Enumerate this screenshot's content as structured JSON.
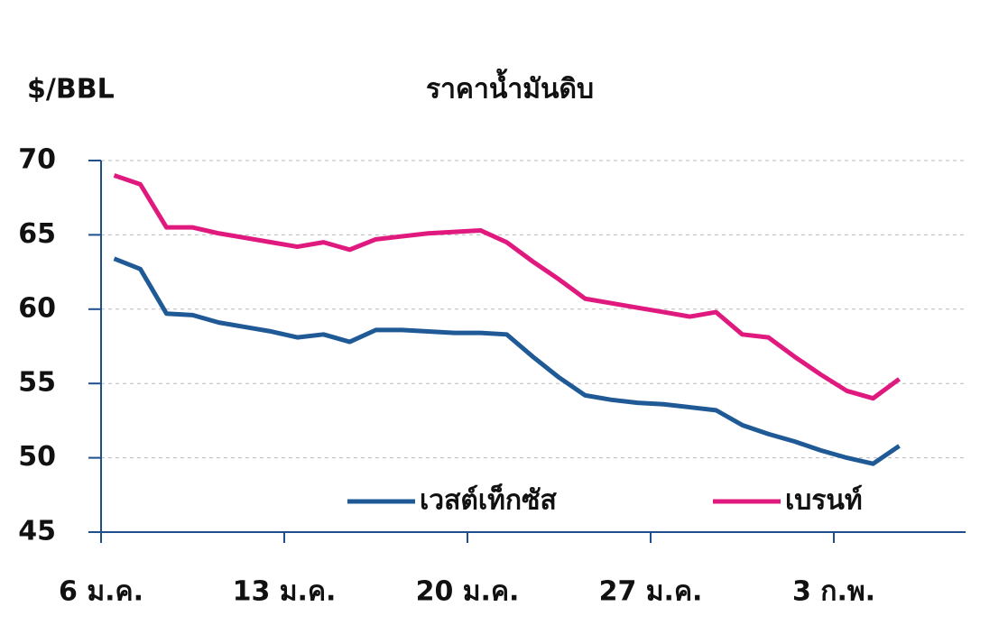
{
  "chart_data": {
    "type": "line",
    "title": "ราคาน้ำมันดิบ",
    "y_label": "$/BBL",
    "categories": [
      "6 ม.ค.",
      null,
      null,
      null,
      null,
      null,
      null,
      "13 ม.ค.",
      null,
      null,
      null,
      null,
      null,
      null,
      "20 ม.ค.",
      null,
      null,
      null,
      null,
      null,
      null,
      "27 ม.ค.",
      null,
      null,
      null,
      null,
      null,
      null,
      "3 ก.พ.",
      null,
      null
    ],
    "series": [
      {
        "name": "เวสต์เท็กซัส",
        "color": "#1f5a96",
        "values": [
          63.4,
          62.7,
          59.7,
          59.6,
          59.1,
          58.8,
          58.5,
          58.1,
          58.3,
          57.8,
          58.6,
          58.6,
          58.5,
          58.4,
          58.4,
          58.3,
          56.8,
          55.4,
          54.2,
          53.9,
          53.7,
          53.6,
          53.4,
          53.2,
          52.2,
          51.6,
          51.1,
          50.5,
          50.0,
          49.6,
          50.8
        ]
      },
      {
        "name": "เบรนท์",
        "color": "#e0197f",
        "values": [
          69.0,
          68.4,
          65.5,
          65.5,
          65.1,
          64.8,
          64.5,
          64.2,
          64.5,
          64.0,
          64.7,
          64.9,
          65.1,
          65.2,
          65.3,
          64.5,
          63.2,
          62.0,
          60.7,
          60.4,
          60.1,
          59.8,
          59.5,
          59.8,
          58.3,
          58.1,
          56.8,
          55.6,
          54.5,
          54.0,
          55.3
        ]
      }
    ],
    "ylim": [
      45,
      70
    ],
    "yticks": [
      45,
      50,
      55,
      60,
      65,
      70
    ],
    "grid": true
  }
}
